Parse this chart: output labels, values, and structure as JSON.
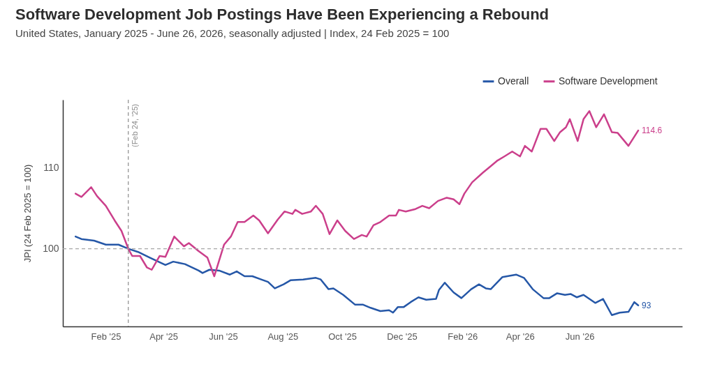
{
  "chart_data": {
    "type": "line",
    "title": "Software Development Job Postings Have Been Experiencing a Rebound",
    "subtitle": "United States, January 2025 - June 26, 2026, seasonally adjusted | Index, 24 Feb 2025 = 100",
    "ylabel": "JPI (24 Feb 2025 = 100)",
    "xlim": [
      "2024-12-19",
      "2026-09-14"
    ],
    "xticks": [
      {
        "value": "2025-02-01",
        "label": "Feb '25"
      },
      {
        "value": "2025-04-01",
        "label": "Apr '25"
      },
      {
        "value": "2025-06-01",
        "label": "Jun '25"
      },
      {
        "value": "2025-08-01",
        "label": "Aug '25"
      },
      {
        "value": "2025-10-01",
        "label": "Oct '25"
      },
      {
        "value": "2025-12-01",
        "label": "Dec '25"
      },
      {
        "value": "2026-02-01",
        "label": "Feb '26"
      },
      {
        "value": "2026-04-01",
        "label": "Apr '26"
      },
      {
        "value": "2026-06-01",
        "label": "Jun '26"
      }
    ],
    "ylim": [
      90.4,
      118.4
    ],
    "yticks": [
      100,
      110
    ],
    "grid": false,
    "legend": "top right",
    "marker": "none",
    "line_style": "solid",
    "series": [
      {
        "name": "Overall",
        "color": "#2557a7",
        "x": [
          "2025-01-01",
          "2025-01-07",
          "2025-01-20",
          "2025-02-01",
          "2025-02-14",
          "2025-02-24",
          "2025-03-06",
          "2025-03-18",
          "2025-04-03",
          "2025-04-11",
          "2025-04-23",
          "2025-05-07",
          "2025-05-11",
          "2025-05-18",
          "2025-05-28",
          "2025-06-08",
          "2025-06-15",
          "2025-06-23",
          "2025-07-01",
          "2025-07-10",
          "2025-07-17",
          "2025-07-24",
          "2025-08-02",
          "2025-08-09",
          "2025-08-22",
          "2025-09-04",
          "2025-09-09",
          "2025-09-17",
          "2025-09-22",
          "2025-10-02",
          "2025-10-14",
          "2025-10-22",
          "2025-10-30",
          "2025-11-09",
          "2025-11-18",
          "2025-11-22",
          "2025-11-27",
          "2025-12-03",
          "2025-12-10",
          "2025-12-18",
          "2025-12-26",
          "2026-01-05",
          "2026-01-08",
          "2026-01-14",
          "2026-01-23",
          "2026-01-31",
          "2026-02-10",
          "2026-02-18",
          "2026-02-25",
          "2026-03-02",
          "2026-03-14",
          "2026-03-28",
          "2026-04-05",
          "2026-04-14",
          "2026-04-25",
          "2026-05-01",
          "2026-05-09",
          "2026-05-17",
          "2026-05-23",
          "2026-05-29",
          "2026-06-05",
          "2026-06-17",
          "2026-06-25",
          "2026-07-04",
          "2026-07-12",
          "2026-07-21",
          "2026-07-27",
          "2026-07-31"
        ],
        "values": [
          101.5,
          101.2,
          101.0,
          100.5,
          100.5,
          100.0,
          99.6,
          98.9,
          98.0,
          98.4,
          98.1,
          97.3,
          97.0,
          97.4,
          97.3,
          96.8,
          97.2,
          96.6,
          96.6,
          96.2,
          95.9,
          95.1,
          95.6,
          96.1,
          96.2,
          96.4,
          96.2,
          95.0,
          95.1,
          94.3,
          93.1,
          93.1,
          92.7,
          92.3,
          92.4,
          92.1,
          92.8,
          92.8,
          93.4,
          94.0,
          93.7,
          93.8,
          94.9,
          95.8,
          94.6,
          93.9,
          95.0,
          95.6,
          95.1,
          95.0,
          96.5,
          96.8,
          96.4,
          95.0,
          93.9,
          93.9,
          94.5,
          94.3,
          94.4,
          94.0,
          94.3,
          93.3,
          93.8,
          91.8,
          92.1,
          92.2,
          93.4,
          93.0
        ]
      },
      {
        "name": "Software Development",
        "color": "#cb3f8b",
        "x": [
          "2025-01-01",
          "2025-01-07",
          "2025-01-17",
          "2025-01-23",
          "2025-02-01",
          "2025-02-10",
          "2025-02-17",
          "2025-02-24",
          "2025-02-28",
          "2025-03-08",
          "2025-03-15",
          "2025-03-20",
          "2025-03-28",
          "2025-04-03",
          "2025-04-12",
          "2025-04-22",
          "2025-04-27",
          "2025-05-07",
          "2025-05-16",
          "2025-05-23",
          "2025-06-02",
          "2025-06-09",
          "2025-06-16",
          "2025-06-23",
          "2025-07-02",
          "2025-07-08",
          "2025-07-17",
          "2025-07-27",
          "2025-08-03",
          "2025-08-11",
          "2025-08-14",
          "2025-08-21",
          "2025-08-30",
          "2025-09-04",
          "2025-09-11",
          "2025-09-18",
          "2025-09-26",
          "2025-10-04",
          "2025-10-13",
          "2025-10-21",
          "2025-10-26",
          "2025-11-02",
          "2025-11-09",
          "2025-11-18",
          "2025-11-25",
          "2025-11-28",
          "2025-12-05",
          "2025-12-15",
          "2025-12-22",
          "2025-12-29",
          "2026-01-07",
          "2026-01-16",
          "2026-01-23",
          "2026-01-29",
          "2026-02-03",
          "2026-02-11",
          "2026-02-22",
          "2026-03-02",
          "2026-03-09",
          "2026-03-16",
          "2026-03-24",
          "2026-04-01",
          "2026-04-06",
          "2026-04-13",
          "2026-04-22",
          "2026-04-28",
          "2026-05-06",
          "2026-05-12",
          "2026-05-18",
          "2026-05-22",
          "2026-05-30",
          "2026-06-05",
          "2026-06-11",
          "2026-06-18",
          "2026-06-26",
          "2026-07-04",
          "2026-07-10",
          "2026-07-21",
          "2026-07-31"
        ],
        "values": [
          106.8,
          106.4,
          107.6,
          106.5,
          105.3,
          103.5,
          102.2,
          100.0,
          99.1,
          99.1,
          97.7,
          97.4,
          99.1,
          99.0,
          101.5,
          100.3,
          100.7,
          99.7,
          98.9,
          96.6,
          100.5,
          101.5,
          103.3,
          103.3,
          104.1,
          103.5,
          101.9,
          103.6,
          104.6,
          104.3,
          104.8,
          104.3,
          104.6,
          105.3,
          104.3,
          101.8,
          103.5,
          102.2,
          101.2,
          101.7,
          101.5,
          102.9,
          103.3,
          104.1,
          104.1,
          104.8,
          104.6,
          104.9,
          105.3,
          105.0,
          105.9,
          106.3,
          106.1,
          105.5,
          106.8,
          108.2,
          109.4,
          110.2,
          110.9,
          111.4,
          112.0,
          111.4,
          112.7,
          112.0,
          114.8,
          114.8,
          113.3,
          114.4,
          115.0,
          116.0,
          113.3,
          116.0,
          117.0,
          115.0,
          116.6,
          114.4,
          114.3,
          112.7,
          114.6
        ]
      }
    ],
    "ref_lines": [
      {
        "axis": "y",
        "value": 100,
        "color": "#a6a6a6",
        "line_style": "dashed"
      },
      {
        "axis": "x",
        "value": "2025-02-24",
        "label": "(Feb 24, '25)",
        "color": "#8c8c8c",
        "line_style": "dashed"
      }
    ],
    "annotations": [
      {
        "text": "93",
        "x": "2026-07-31",
        "y": 93.0
      },
      {
        "text": "114.6",
        "x": "2026-07-31",
        "y": 114.6
      }
    ]
  }
}
